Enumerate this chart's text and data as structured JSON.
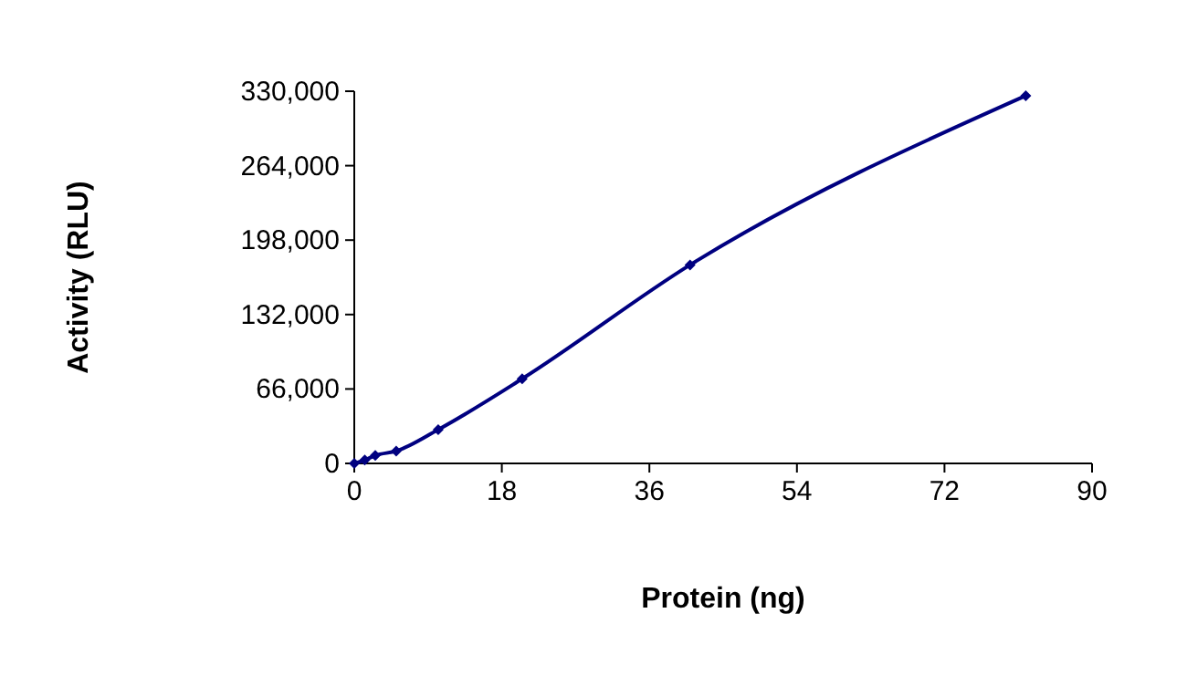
{
  "chart_data": {
    "type": "line",
    "xlabel": "Protein (ng)",
    "ylabel": "Activity (RLU)",
    "x": [
      0,
      1.28,
      2.56,
      5.12,
      10.24,
      20.48,
      40.96,
      81.92
    ],
    "series": [
      {
        "color": "#000080",
        "values": [
          0,
          3000,
          7000,
          11000,
          30000,
          75000,
          176000,
          326000
        ]
      }
    ],
    "xlim": [
      0,
      90
    ],
    "xticks": [
      0,
      18,
      36,
      54,
      72,
      90
    ],
    "ylim": [
      0,
      330000
    ],
    "yticks": [
      {
        "value": 0,
        "label": "0"
      },
      {
        "value": 66000,
        "label": "66,000"
      },
      {
        "value": 132000,
        "label": "132,000"
      },
      {
        "value": 198000,
        "label": "198,000"
      },
      {
        "value": 264000,
        "label": "264,000"
      },
      {
        "value": 330000,
        "label": "330,000"
      }
    ],
    "grid": false,
    "marker": "diamond",
    "line_style": "solid"
  }
}
